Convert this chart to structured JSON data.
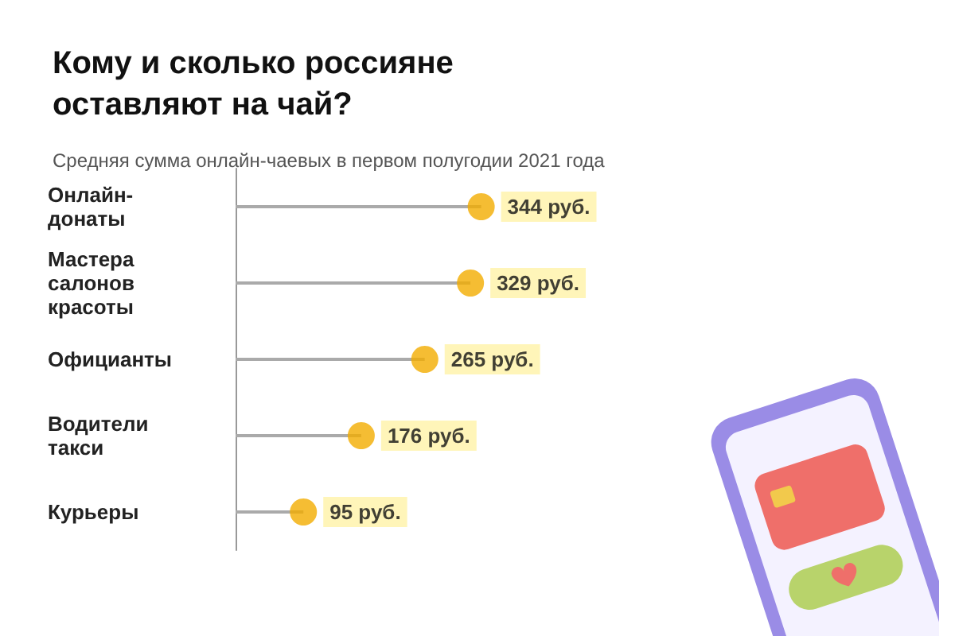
{
  "chart_data": {
    "type": "lollipop",
    "orientation": "horizontal",
    "title": "Кому и сколько россияне\nоставляют на чай?",
    "subtitle": "Средняя сумма онлайн-чаевых в первом полугодии 2021 года",
    "categories": [
      "Онлайн-\nдонаты",
      "Мастера\nсалонов\nкрасоты",
      "Официанты",
      "Водители\nтакси",
      "Курьеры"
    ],
    "values": [
      344,
      329,
      265,
      176,
      95
    ],
    "value_labels": [
      "344 руб.",
      "329 руб.",
      "265 руб.",
      "176 руб.",
      "95 руб."
    ],
    "color": "#f2ad00"
  }
}
